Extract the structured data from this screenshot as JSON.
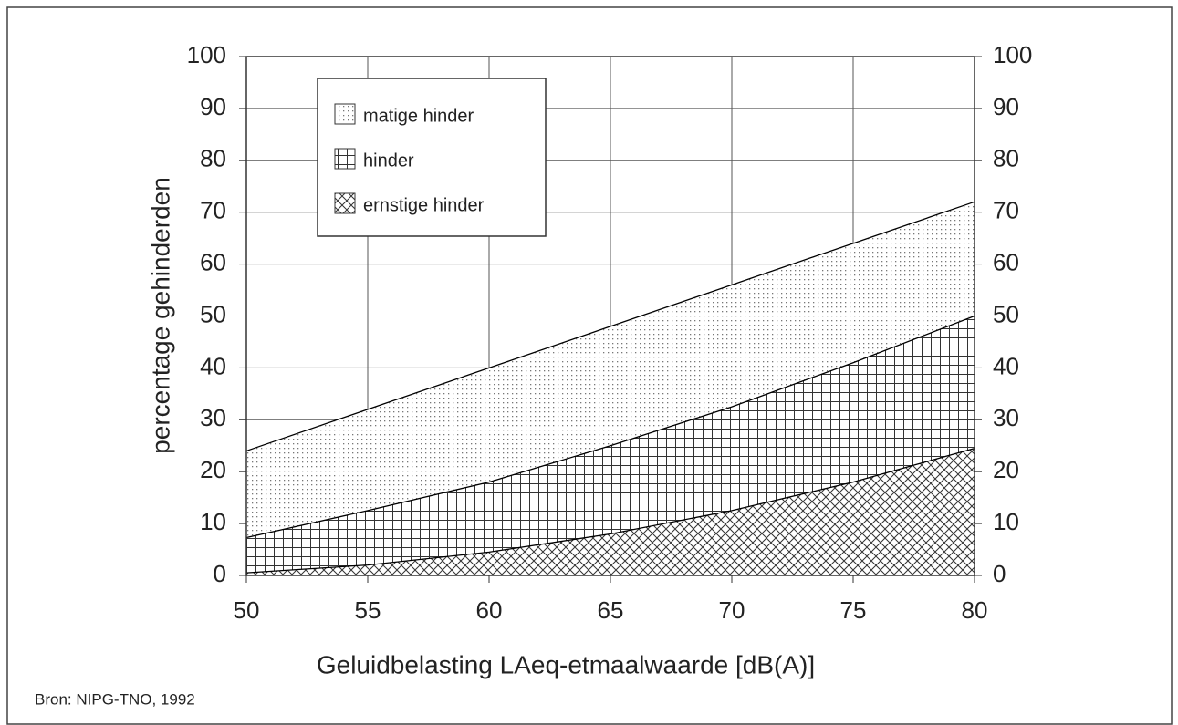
{
  "chart_data": {
    "type": "area",
    "x_label": "Geluidbelasting LAeq-etmaalwaarde [dB(A)]",
    "y_label": "percentage gehinderden",
    "source": "Bron: NIPG-TNO, 1992",
    "x": [
      50,
      55,
      60,
      65,
      70,
      75,
      80
    ],
    "series": [
      {
        "name": "matige hinder",
        "color": "#000000",
        "pattern": "dots",
        "values": [
          24,
          32,
          40,
          48,
          56,
          64,
          72
        ]
      },
      {
        "name": "hinder",
        "color": "#000000",
        "pattern": "grid",
        "values": [
          7.3,
          12.5,
          18,
          25,
          32.5,
          41,
          50
        ]
      },
      {
        "name": "ernstige hinder",
        "color": "#000000",
        "pattern": "crosshatch",
        "values": [
          0.5,
          2,
          4.5,
          8,
          12.5,
          18,
          24.5
        ]
      }
    ],
    "xlim": [
      50,
      80
    ],
    "xticks": [
      50,
      55,
      60,
      65,
      70,
      75,
      80
    ],
    "ylim": [
      0,
      100
    ],
    "yticks": [
      0,
      10,
      20,
      30,
      40,
      50,
      60,
      70,
      80,
      90,
      100
    ],
    "y2lim": [
      0,
      100
    ],
    "y2ticks": [
      0,
      10,
      20,
      30,
      40,
      50,
      60,
      70,
      80,
      90,
      100
    ],
    "grid": true,
    "legend": "upper left"
  }
}
